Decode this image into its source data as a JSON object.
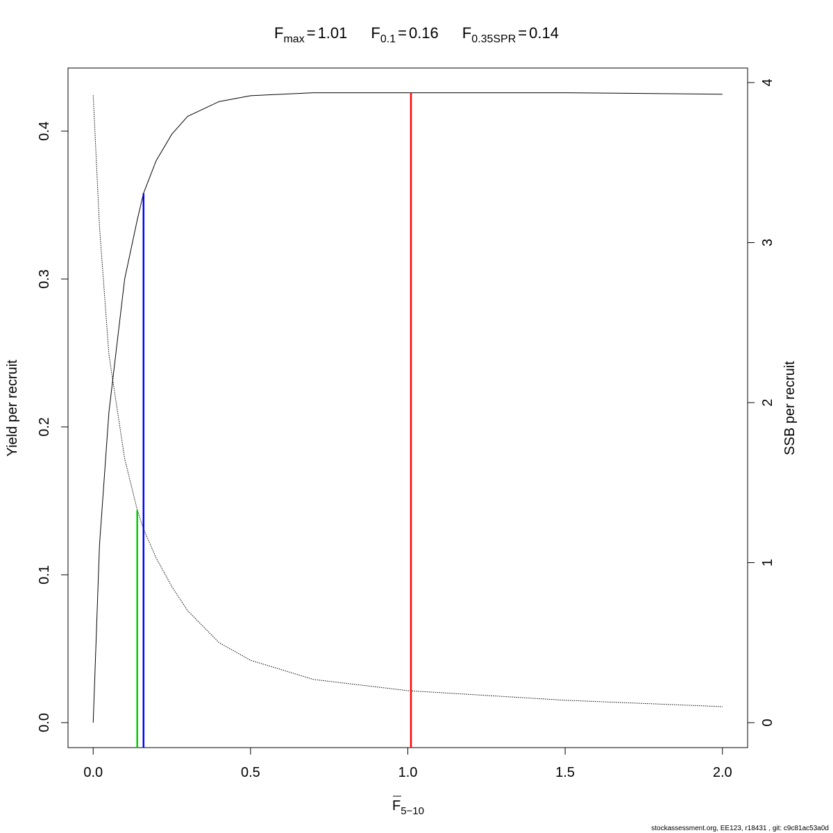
{
  "chart_data": {
    "type": "line",
    "title": [
      {
        "symbol": "F",
        "subscript": "max",
        "relation": "=",
        "value": 1.01
      },
      {
        "symbol": "F",
        "subscript": "0.1",
        "relation": "=",
        "value": 0.16
      },
      {
        "symbol": "F",
        "subscript": "0.35SPR",
        "relation": "=",
        "value": 0.14
      }
    ],
    "xlabel": {
      "symbol": "F",
      "subscript": "5−10"
    },
    "ylabel": "Yield per recruit",
    "y2label": "SSB per recruit",
    "x": [
      0,
      0.02,
      0.05,
      0.1,
      0.14,
      0.16,
      0.2,
      0.25,
      0.3,
      0.4,
      0.5,
      0.7,
      1.0,
      1.5,
      2.0
    ],
    "series": [
      {
        "name": "Yield per recruit",
        "color": "#000000",
        "dash": "solid",
        "values": [
          0,
          0.12,
          0.21,
          0.3,
          0.34,
          0.358,
          0.38,
          0.398,
          0.41,
          0.42,
          0.424,
          0.426,
          0.426,
          0.426,
          0.425
        ]
      },
      {
        "name": "SSB per recruit",
        "color": "#000000",
        "dash": "dotted",
        "axis": "y2",
        "values": [
          3.92,
          3.1,
          2.3,
          1.65,
          1.33,
          1.21,
          1.03,
          0.85,
          0.7,
          0.5,
          0.39,
          0.27,
          0.2,
          0.14,
          0.1
        ]
      }
    ],
    "reference_lines": [
      {
        "value": 1.01,
        "top": 0.426,
        "color": "#ff0000"
      },
      {
        "value": 0.16,
        "top": 0.358,
        "color": "#0000ff"
      },
      {
        "value": 0.14,
        "top": 0.1437,
        "color": "#00cc00"
      }
    ],
    "xlim": [
      -0.08,
      2.08
    ],
    "xticks": [
      {
        "value": 0,
        "label": "0.0"
      },
      {
        "value": 0.5,
        "label": "0.5"
      },
      {
        "value": 1,
        "label": "1.0"
      },
      {
        "value": 1.5,
        "label": "1.5"
      },
      {
        "value": 2,
        "label": "2.0"
      }
    ],
    "ylim": [
      -0.0169,
      0.4427
    ],
    "yticks": [
      {
        "value": 0,
        "label": "0.0"
      },
      {
        "value": 0.1,
        "label": "0.1"
      },
      {
        "value": 0.2,
        "label": "0.2"
      },
      {
        "value": 0.3,
        "label": "0.3"
      },
      {
        "value": 0.4,
        "label": "0.4"
      }
    ],
    "y2lim": [
      -0.156,
      4.091
    ],
    "y2ticks": [
      0,
      1,
      2,
      3,
      4
    ],
    "footer": "stockassessment.org, EE123, r18431 , git: c9c81ac53a0d"
  }
}
